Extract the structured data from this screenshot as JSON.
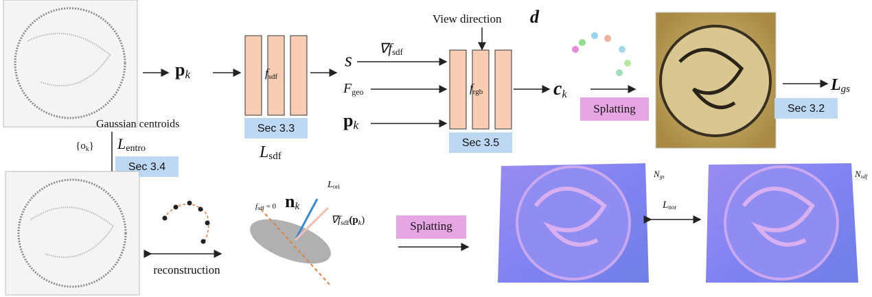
{
  "nodes": {
    "point_input": {
      "base": "p",
      "sub": "k"
    },
    "sdf_net": {
      "base": "f",
      "sub": "sdf"
    },
    "sdf_section": "Sec 3.3",
    "sdf_loss": {
      "base": "L",
      "sub": "sdf"
    },
    "sdf_value": "s",
    "sdf_gradient": {
      "base": "∇f",
      "sub": "sdf"
    },
    "geo_feature": {
      "base": "F",
      "sub": "geo"
    },
    "point_input_rgb": {
      "base": "p",
      "sub": "k"
    },
    "view_direction": "View direction",
    "view_symbol": "d",
    "rgb_net": {
      "base": "f",
      "sub": "rgb"
    },
    "rgb_section": "Sec 3.5",
    "color_output": {
      "base": "c",
      "sub": "k"
    },
    "splatting_top": "Splatting",
    "gs_loss": {
      "base": "L",
      "sub": "gs"
    },
    "gs_section": "Sec 3.2",
    "centroids_label": "Gaussian centroids",
    "centroid_set": {
      "base": "{o",
      "sub": "k",
      "tail": "}"
    },
    "entropy_loss": {
      "base": "L",
      "sub": "entro"
    },
    "entropy_section": "Sec 3.4",
    "reconstruction": "reconstruction",
    "zero_level": {
      "base": "f",
      "sub": "sdf",
      "tail": " = 0"
    },
    "normal": {
      "base": "n",
      "sub": "k"
    },
    "orientation_loss": {
      "base": "L",
      "sub": "ori"
    },
    "sdf_gradient_at_point": {
      "base": "∇f",
      "sub": "sdf",
      "tail": "(p",
      "sub2": "k",
      "tail2": ")"
    },
    "splatting_bottom": "Splatting",
    "normal_gs": {
      "base": "N",
      "sub": "gs"
    },
    "normal_sdf": {
      "base": "N",
      "sub": "sdf"
    },
    "normal_loss": {
      "base": "L",
      "sub": "nor"
    }
  }
}
